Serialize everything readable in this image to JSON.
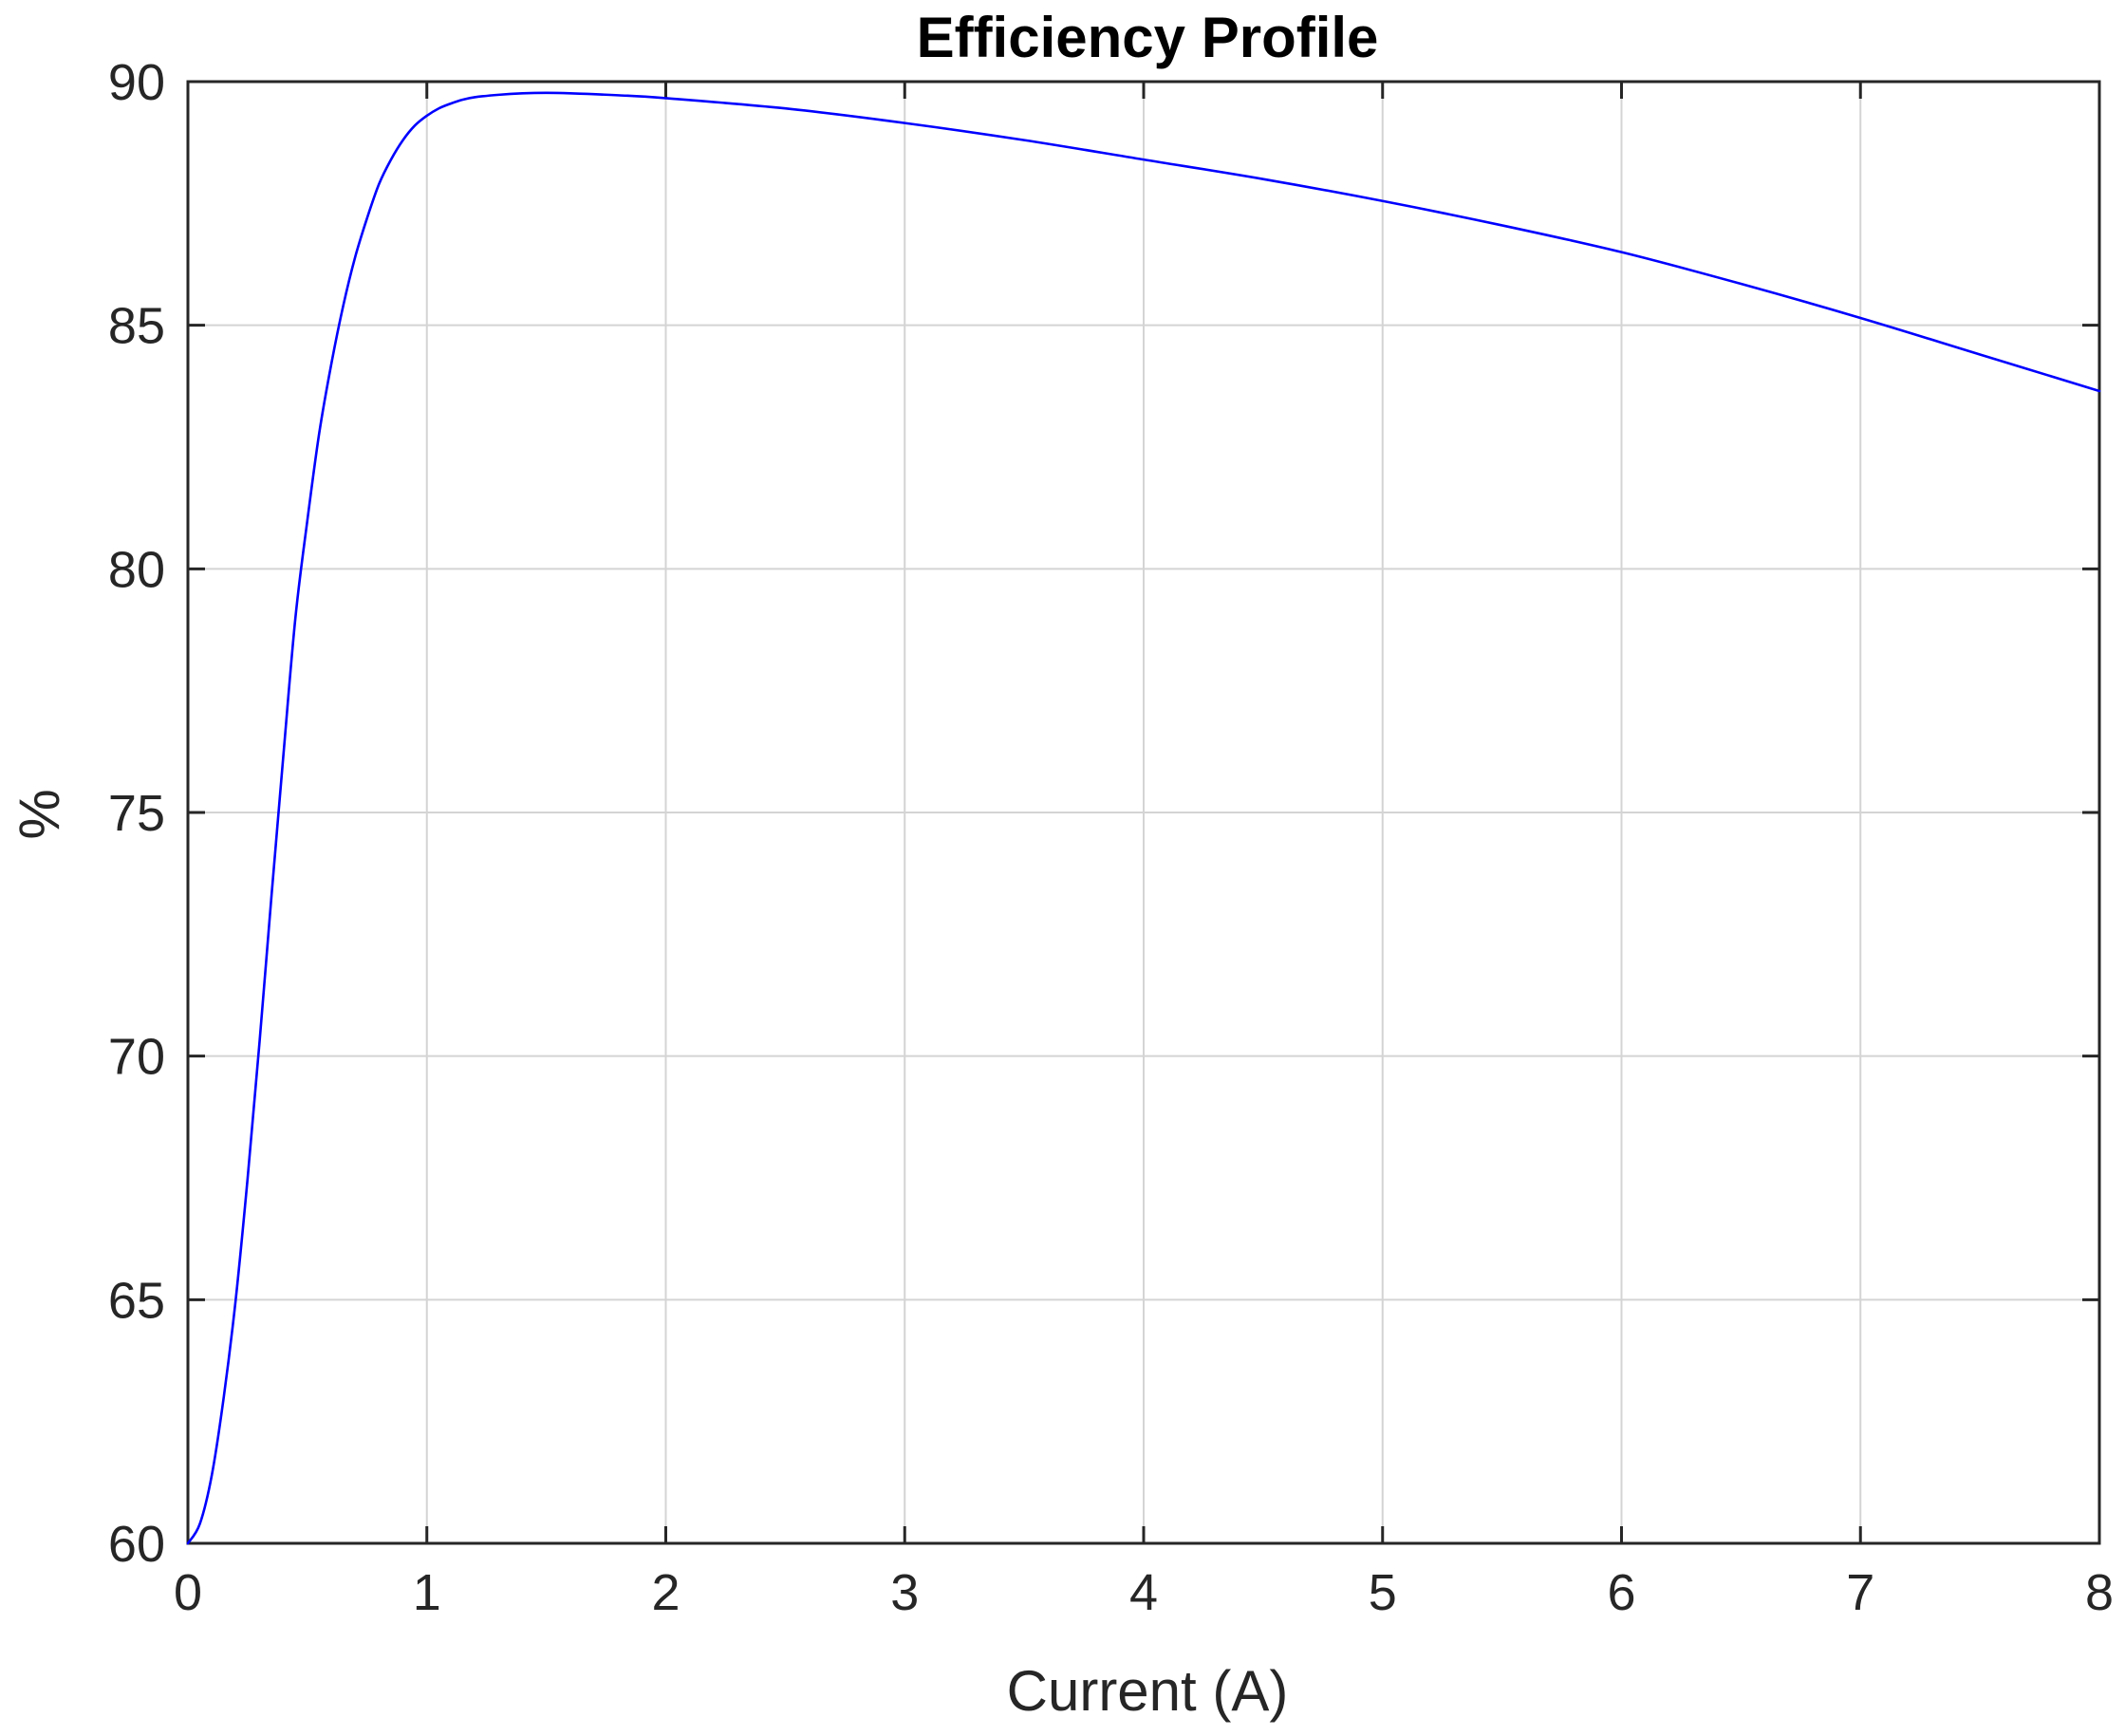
{
  "chart_data": {
    "type": "line",
    "title": "Efficiency Profile",
    "xlabel": "Current (A)",
    "ylabel": "%",
    "xlim": [
      0,
      8
    ],
    "ylim": [
      60,
      90
    ],
    "xticks": [
      "0",
      "1",
      "2",
      "3",
      "4",
      "5",
      "6",
      "7",
      "8"
    ],
    "yticks": [
      "60",
      "65",
      "70",
      "75",
      "80",
      "85",
      "90"
    ],
    "grid": true,
    "series_color": "#0000ff",
    "series": [
      {
        "x": [
          0,
          0.05,
          0.1,
          0.15,
          0.2,
          0.25,
          0.3,
          0.35,
          0.4,
          0.45,
          0.5,
          0.55,
          0.6,
          0.65,
          0.7,
          0.75,
          0.8,
          0.85,
          0.9,
          0.95,
          1.0,
          1.05,
          1.1,
          1.15,
          1.2,
          1.3,
          1.4,
          1.5,
          1.6,
          1.8,
          2.0,
          2.5,
          3.0,
          3.5,
          4.0,
          4.5,
          5.0,
          5.5,
          6.0,
          6.5,
          7.0,
          7.5,
          8.0
        ],
        "y": [
          60.0,
          60.4,
          61.4,
          63.0,
          65.0,
          67.5,
          70.3,
          73.3,
          76.2,
          79.0,
          81.0,
          82.8,
          84.2,
          85.4,
          86.4,
          87.2,
          87.9,
          88.4,
          88.8,
          89.1,
          89.3,
          89.45,
          89.55,
          89.63,
          89.68,
          89.73,
          89.76,
          89.77,
          89.76,
          89.72,
          89.66,
          89.45,
          89.15,
          88.8,
          88.4,
          88.0,
          87.55,
          87.05,
          86.5,
          85.85,
          85.15,
          84.4,
          83.65
        ]
      }
    ]
  }
}
